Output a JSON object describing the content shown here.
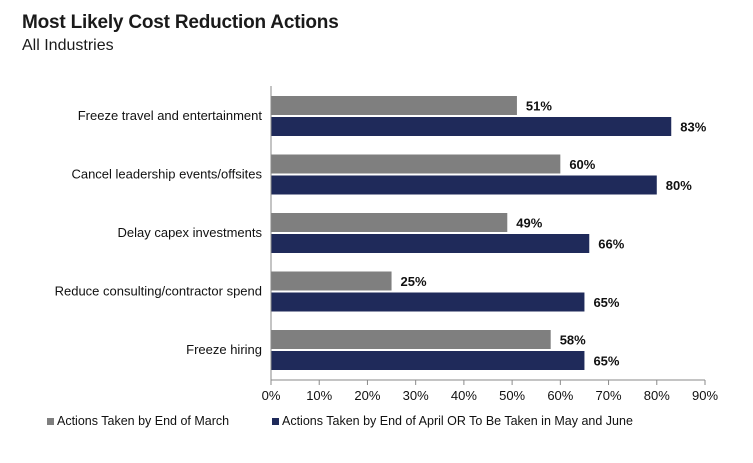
{
  "chart_data": {
    "type": "bar",
    "orientation": "horizontal",
    "title": "Most Likely Cost Reduction Actions",
    "subtitle": "All Industries",
    "categories": [
      "Freeze travel and entertainment",
      "Cancel leadership events/offsites",
      "Delay capex investments",
      "Reduce consulting/contractor spend",
      "Freeze hiring"
    ],
    "series": [
      {
        "name": "Actions Taken by End of March",
        "color": "#7f7f7f",
        "values": [
          51,
          60,
          49,
          25,
          58
        ],
        "labels": [
          "51%",
          "60%",
          "49%",
          "25%",
          "58%"
        ]
      },
      {
        "name": "Actions Taken by End of April OR To Be Taken in May and June",
        "color": "#1f2a5a",
        "values": [
          83,
          80,
          66,
          65,
          65
        ],
        "labels": [
          "83%",
          "80%",
          "66%",
          "65%",
          "65%"
        ]
      }
    ],
    "xlim": [
      0,
      90
    ],
    "xticks": [
      0,
      10,
      20,
      30,
      40,
      50,
      60,
      70,
      80,
      90
    ],
    "xtick_labels": [
      "0%",
      "10%",
      "20%",
      "30%",
      "40%",
      "50%",
      "60%",
      "70%",
      "80%",
      "90%"
    ],
    "grid": false,
    "legend_position": "bottom-left"
  }
}
